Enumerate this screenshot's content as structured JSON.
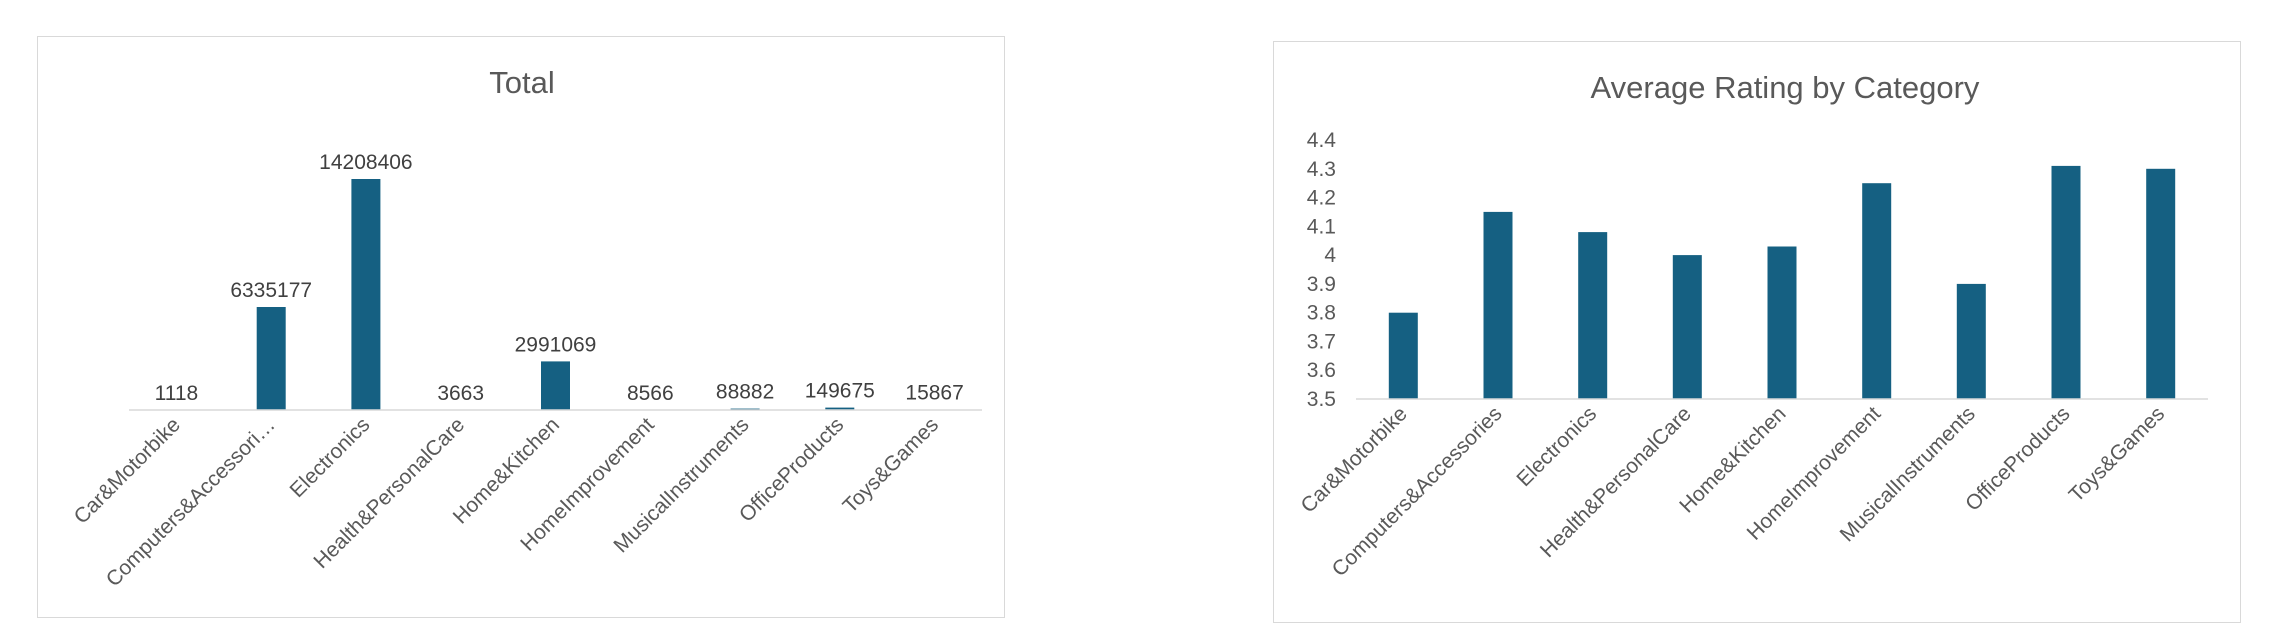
{
  "colors": {
    "bar": "#156082",
    "axis": "#d9d9d9",
    "text": "#595959"
  },
  "chart_data": [
    {
      "type": "bar",
      "title": "Total",
      "categories": [
        "Car&Motorbike",
        "Computers&Accessori…",
        "Electronics",
        "Health&PersonalCare",
        "Home&Kitchen",
        "HomeImprovement",
        "MusicalInstruments",
        "OfficeProducts",
        "Toys&Games"
      ],
      "values": [
        1118,
        6335177,
        14208406,
        3663,
        2991069,
        8566,
        88882,
        149675,
        15867
      ],
      "data_labels": [
        "1118",
        "6335177",
        "14208406",
        "3663",
        "2991069",
        "8566",
        "88882",
        "149675",
        "15867"
      ],
      "ylim": [
        0,
        14208406
      ],
      "y_axis_visible": false,
      "grid": false,
      "legend": "none"
    },
    {
      "type": "bar",
      "title": "Average Rating by Category",
      "categories": [
        "Car&Motorbike",
        "Computers&Accessories",
        "Electronics",
        "Health&PersonalCare",
        "Home&Kitchen",
        "HomeImprovement",
        "MusicalInstruments",
        "OfficeProducts",
        "Toys&Games"
      ],
      "values": [
        3.8,
        4.15,
        4.08,
        4.0,
        4.03,
        4.25,
        3.9,
        4.31,
        4.3
      ],
      "y_ticks": [
        "3.5",
        "3.6",
        "3.7",
        "3.8",
        "3.9",
        "4",
        "4.1",
        "4.2",
        "4.3",
        "4.4"
      ],
      "ylim": [
        3.5,
        4.4
      ],
      "grid": false,
      "legend": "none"
    }
  ]
}
